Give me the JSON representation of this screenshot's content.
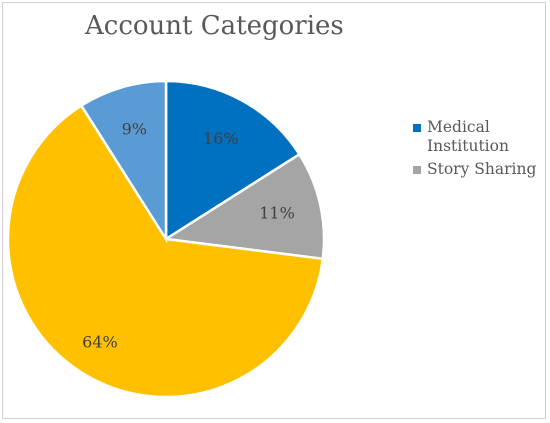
{
  "chart_data": {
    "type": "pie",
    "title": "Account Categories",
    "slices": [
      {
        "label": "Medical Institution",
        "value": 16,
        "display": "16%",
        "color": "#0070C0"
      },
      {
        "label": "Story Sharing",
        "value": 11,
        "display": "11%",
        "color": "#A5A5A5"
      },
      {
        "label": "",
        "value": 64,
        "display": "64%",
        "color": "#FFC000"
      },
      {
        "label": "",
        "value": 9,
        "display": "9%",
        "color": "#5B9BD5"
      }
    ],
    "legend": [
      {
        "label": "Medical Institution",
        "color": "#0070C0"
      },
      {
        "label": "Story Sharing",
        "color": "#A5A5A5"
      }
    ],
    "legend_position": "right"
  }
}
